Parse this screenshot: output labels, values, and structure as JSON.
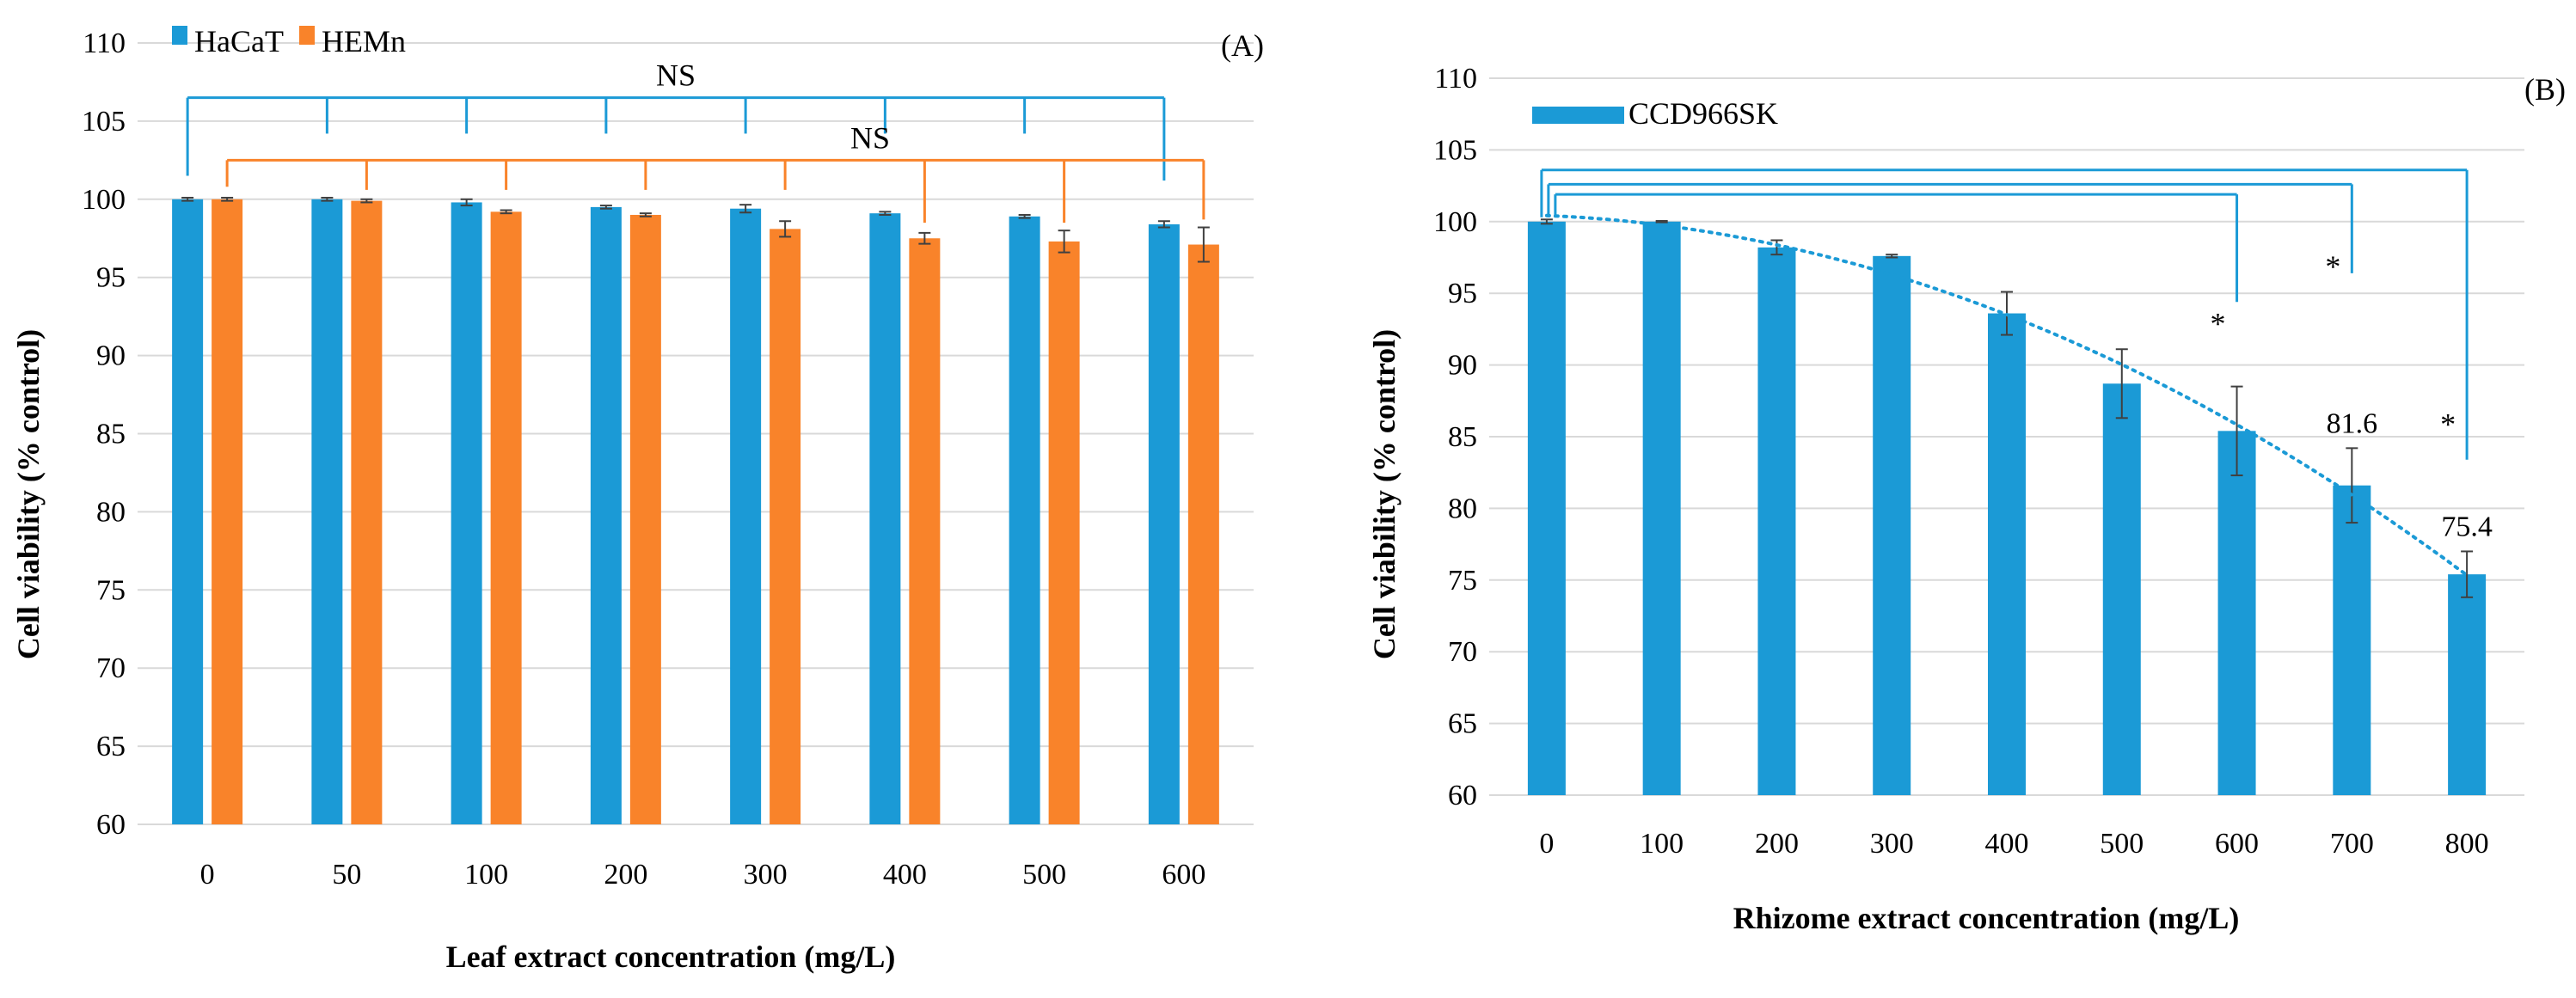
{
  "chart_data": [
    {
      "panel": "(A)",
      "type": "bar",
      "xlabel": "Leaf extract concentration (mg/L)",
      "ylabel": "Cell viability (% control)",
      "ylim": [
        60,
        110
      ],
      "yticks": [
        60,
        65,
        70,
        75,
        80,
        85,
        90,
        95,
        100,
        105,
        110
      ],
      "categories": [
        "0",
        "50",
        "100",
        "200",
        "300",
        "400",
        "500",
        "600"
      ],
      "legend_position": "top-left",
      "series": [
        {
          "name": "HaCaT",
          "color": "#1b9ad6",
          "values": [
            100.0,
            100.0,
            99.8,
            99.5,
            99.4,
            99.1,
            98.9,
            98.4
          ],
          "errors": [
            0.1,
            0.1,
            0.2,
            0.1,
            0.25,
            0.1,
            0.1,
            0.2
          ]
        },
        {
          "name": "HEMn",
          "color": "#f9832a",
          "values": [
            100.0,
            99.9,
            99.2,
            99.0,
            98.1,
            97.5,
            97.3,
            97.1
          ],
          "errors": [
            0.1,
            0.1,
            0.1,
            0.1,
            0.5,
            0.35,
            0.7,
            1.1
          ]
        }
      ],
      "annotations": [
        {
          "text": "NS",
          "series": "HaCaT",
          "color": "#1b9ad6",
          "bracket_y": 106.5,
          "bracket_bottoms": [
            101.5,
            104.2,
            104.2,
            104.2,
            104.2,
            104.2,
            104.2,
            101.2
          ]
        },
        {
          "text": "NS",
          "series": "HEMn",
          "color": "#f9832a",
          "bracket_y": 102.5,
          "bracket_bottoms": [
            100.8,
            100.6,
            100.6,
            100.6,
            100.6,
            98.5,
            98.5,
            98.7
          ]
        }
      ]
    },
    {
      "panel": "(B)",
      "type": "bar",
      "xlabel": "Rhizome extract concentration (mg/L)",
      "ylabel": "Cell viability (% control)",
      "ylim": [
        60,
        110
      ],
      "yticks": [
        60,
        65,
        70,
        75,
        80,
        85,
        90,
        95,
        100,
        105,
        110
      ],
      "categories": [
        "0",
        "100",
        "200",
        "300",
        "400",
        "500",
        "600",
        "700",
        "800"
      ],
      "legend_position": "top-left",
      "series": [
        {
          "name": "CCD966SK",
          "color": "#1b9ad6",
          "values": [
            100.0,
            100.0,
            98.2,
            97.6,
            93.6,
            88.7,
            85.4,
            81.6,
            75.4
          ],
          "errors": [
            0.15,
            0.05,
            0.5,
            0.1,
            1.5,
            2.4,
            3.1,
            2.6,
            1.6
          ]
        }
      ],
      "trendline": {
        "style": "dotted",
        "color": "#1b9ad6"
      },
      "data_labels": [
        {
          "category": "700",
          "text": "81.6"
        },
        {
          "category": "800",
          "text": "75.4"
        }
      ],
      "annotations": [
        {
          "text": "*",
          "from": "0",
          "to": "600",
          "bracket_y": 101.9,
          "text_y": 93.0
        },
        {
          "text": "*",
          "from": "0",
          "to": "700",
          "bracket_y": 102.6,
          "text_y": 97.0
        },
        {
          "text": "*",
          "from": "0",
          "to": "800",
          "bracket_y": 103.6,
          "text_y": 86.0
        }
      ]
    }
  ]
}
